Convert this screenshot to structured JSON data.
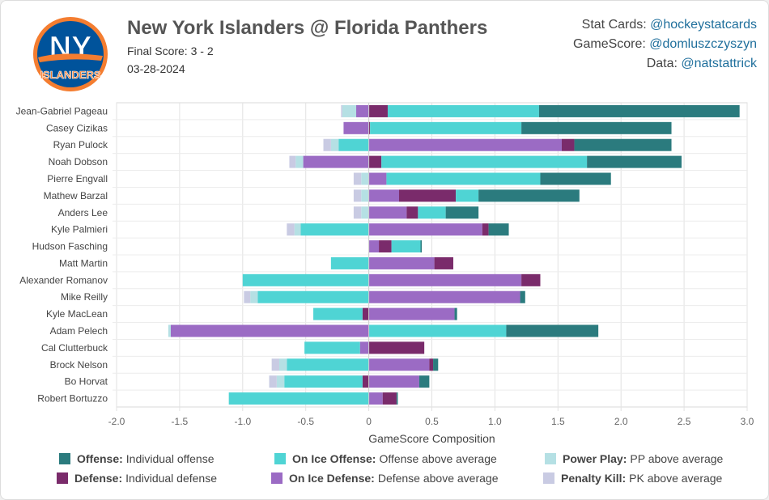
{
  "header": {
    "title": "New York Islanders @ Florida Panthers",
    "score": "Final Score: 3 - 2",
    "date": "03-28-2024",
    "credits": [
      {
        "label": "Stat Cards: ",
        "handle": "@hockeystatcards"
      },
      {
        "label": "GameScore: ",
        "handle": "@domluszczyszyn"
      },
      {
        "label": "Data: ",
        "handle": "@natstattrick"
      }
    ]
  },
  "logo": {
    "text": "NY",
    "wordmark": "ISLANDERS",
    "primary": "#00539b",
    "accent": "#f47d30"
  },
  "legend": [
    {
      "key": "offense",
      "head": "Offense:",
      "desc": "Individual offense"
    },
    {
      "key": "onice_off",
      "head": "On Ice Offense:",
      "desc": "Offense above average"
    },
    {
      "key": "pp",
      "head": "Power Play:",
      "desc": "PP above average"
    },
    {
      "key": "defense",
      "head": "Defense:",
      "desc": "Individual defense"
    },
    {
      "key": "onice_def",
      "head": "On Ice Defense:",
      "desc": "Defense above average"
    },
    {
      "key": "pk",
      "head": "Penalty Kill:",
      "desc": "PK above average"
    }
  ],
  "chart_data": {
    "type": "bar",
    "orientation": "horizontal",
    "stacked": true,
    "xlabel": "GameScore Composition",
    "xlim": [
      -2.0,
      3.0
    ],
    "xticks": [
      "-2.0",
      "-1.5",
      "-1.0",
      "-0.5",
      "0",
      "0.5",
      "1.0",
      "1.5",
      "2.0",
      "2.5",
      "3.0"
    ],
    "grid": true,
    "legend_position": "bottom",
    "colors": {
      "offense": "#2b7b7e",
      "onice_off": "#4fd4d4",
      "pp": "#b5e0e4",
      "defense": "#7a2b6b",
      "onice_def": "#9b6bc4",
      "pk": "#c9cbe3"
    },
    "stack_order": [
      "onice_def",
      "defense",
      "onice_off",
      "offense",
      "pp",
      "pk"
    ],
    "categories": [
      "Jean-Gabriel Pageau",
      "Casey Cizikas",
      "Ryan Pulock",
      "Noah Dobson",
      "Pierre Engvall",
      "Mathew Barzal",
      "Anders Lee",
      "Kyle Palmieri",
      "Hudson Fasching",
      "Matt Martin",
      "Alexander Romanov",
      "Mike Reilly",
      "Kyle MacLean",
      "Adam Pelech",
      "Cal Clutterbuck",
      "Brock Nelson",
      "Bo Horvat",
      "Robert Bortuzzo"
    ],
    "series": [
      {
        "key": "onice_def",
        "name": "On Ice Defense",
        "values": [
          -0.1,
          -0.2,
          1.53,
          -0.52,
          0.14,
          0.24,
          0.3,
          0.9,
          0.08,
          0.52,
          1.21,
          1.2,
          0.68,
          -1.57,
          -0.07,
          0.48,
          0.4,
          0.11
        ]
      },
      {
        "key": "defense",
        "name": "Defense",
        "values": [
          0.15,
          0.01,
          0.1,
          0.1,
          0.0,
          0.45,
          0.09,
          0.05,
          0.1,
          0.15,
          0.15,
          0.0,
          -0.05,
          0.0,
          0.44,
          0.03,
          -0.05,
          0.11
        ]
      },
      {
        "key": "onice_off",
        "name": "On Ice Offense",
        "values": [
          1.2,
          1.2,
          -0.24,
          1.63,
          1.22,
          0.18,
          0.22,
          -0.54,
          0.23,
          -0.3,
          -1.0,
          -0.88,
          -0.39,
          1.09,
          -0.44,
          -0.65,
          -0.62,
          -1.11
        ]
      },
      {
        "key": "offense",
        "name": "Offense",
        "values": [
          1.59,
          1.19,
          0.77,
          0.75,
          0.56,
          0.8,
          0.26,
          0.16,
          0.01,
          0.0,
          0.0,
          0.04,
          0.02,
          0.73,
          0.0,
          0.04,
          0.08,
          0.01
        ]
      },
      {
        "key": "pp",
        "name": "Power Play",
        "values": [
          -0.11,
          0.0,
          -0.06,
          -0.06,
          -0.06,
          -0.06,
          -0.06,
          -0.05,
          0.0,
          0.0,
          0.0,
          -0.06,
          0.0,
          -0.02,
          0.0,
          -0.06,
          -0.06,
          0.0
        ]
      },
      {
        "key": "pk",
        "name": "Penalty Kill",
        "values": [
          -0.01,
          0.0,
          -0.06,
          -0.05,
          -0.06,
          -0.06,
          -0.06,
          -0.06,
          0.0,
          0.0,
          0.0,
          -0.05,
          0.0,
          0.0,
          0.0,
          -0.06,
          -0.06,
          0.0
        ]
      }
    ]
  }
}
